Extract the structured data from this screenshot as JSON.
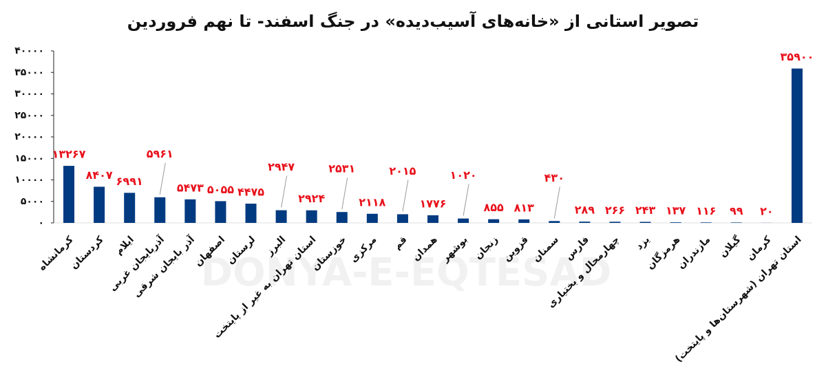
{
  "chart_data": {
    "type": "bar",
    "title": "تصویر استانی از «خانه‌های آسیب‌دیده» در جنگ اسفند- تا نهم فروردین",
    "watermark": "DONYA-E-EQTESAD",
    "categories": [
      "کرمانشاه",
      "کردستان",
      "ایلام",
      "آذربایجان غربی",
      "آذر بایجان شرقی",
      "اصفهان",
      "لرستان",
      "البرز",
      "استان تهران به غیر از پایتخت",
      "خوزستان",
      "مرکزی",
      "قم",
      "همدان",
      "بوشهر",
      "زنجان",
      "قزوین",
      "سمنان",
      "فارس",
      "چهارمحال و بختیاری",
      "یزد",
      "هرمزگان",
      "مازندران",
      "گیلان",
      "کرمان",
      "استان تهران (شهرستان‌ها و پایتخت)"
    ],
    "values": [
      13267,
      8407,
      6991,
      5961,
      5473,
      5055,
      4475,
      2947,
      2924,
      2531,
      2118,
      2015,
      1776,
      1020,
      855,
      813,
      430,
      289,
      266,
      243,
      137,
      116,
      99,
      20,
      35900
    ],
    "value_labels": [
      "۱۳۲۶۷",
      "۸۴۰۷",
      "۶۹۹۱",
      "۵۹۶۱",
      "۵۴۷۳",
      "۵۰۵۵",
      "۴۴۷۵",
      "۲۹۴۷",
      "۲۹۲۴",
      "۲۵۳۱",
      "۲۱۱۸",
      "۲۰۱۵",
      "۱۷۷۶",
      "۱۰۲۰",
      "۸۵۵",
      "۸۱۳",
      "۴۳۰",
      "۲۸۹",
      "۲۶۶",
      "۲۴۳",
      "۱۳۷",
      "۱۱۶",
      "۹۹",
      "۲۰",
      "۳۵۹۰۰"
    ],
    "color": "#003a80",
    "label_color": "#e8101a",
    "ylim": [
      0,
      40000
    ],
    "yticks": [
      {
        "value": 0,
        "label": "۰"
      },
      {
        "value": 5000,
        "label": "۵۰۰۰"
      },
      {
        "value": 10000,
        "label": "۱۰۰۰۰"
      },
      {
        "value": 15000,
        "label": "۱۵۰۰۰"
      },
      {
        "value": 20000,
        "label": "۲۰۰۰۰"
      },
      {
        "value": 25000,
        "label": "۲۵۰۰۰"
      },
      {
        "value": 30000,
        "label": "۳۰۰۰۰"
      },
      {
        "value": 35000,
        "label": "۳۵۰۰۰"
      },
      {
        "value": 40000,
        "label": "۴۰۰۰۰"
      }
    ],
    "grid": false
  }
}
